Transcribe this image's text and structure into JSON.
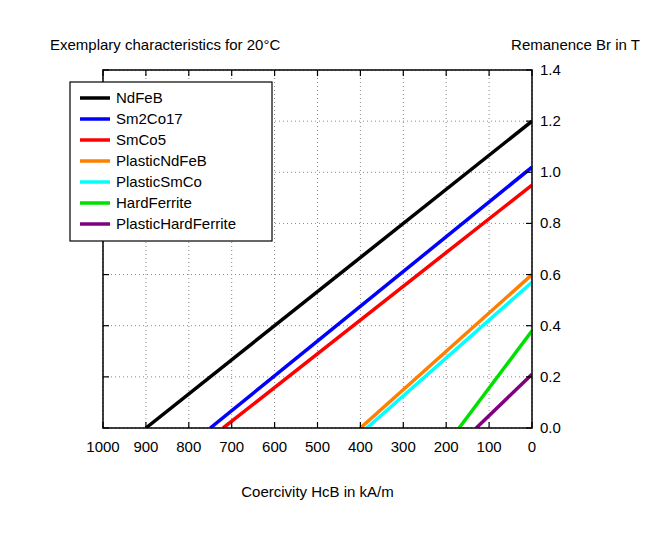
{
  "chart_data": {
    "type": "line",
    "title": "Exemplary characteristics for 20°C",
    "y_label": "Remanence Br in T",
    "x_label": "Coercivity HcB in kA/m",
    "xlim": [
      1000,
      0
    ],
    "xticks": [
      1000,
      900,
      800,
      700,
      600,
      500,
      400,
      300,
      200,
      100,
      0
    ],
    "ylim": [
      0,
      1.4
    ],
    "yticks": [
      {
        "value": 0,
        "label": "0.0"
      },
      0.2,
      0.4,
      0.6,
      0.8,
      {
        "value": 1,
        "label": "1.0"
      },
      1.2,
      1.4
    ],
    "grid": true,
    "legend": "upper left",
    "series": [
      {
        "name": "NdFeB",
        "color": "#000000",
        "x": [
          900,
          0
        ],
        "values": [
          0,
          1.2
        ]
      },
      {
        "name": "Sm2Co17",
        "color": "#0000ff",
        "x": [
          750,
          0
        ],
        "values": [
          0,
          1.02
        ]
      },
      {
        "name": "SmCo5",
        "color": "#ff0000",
        "x": [
          720,
          0
        ],
        "values": [
          0,
          0.95
        ]
      },
      {
        "name": "PlasticNdFeB",
        "color": "#ff8000",
        "x": [
          400,
          0
        ],
        "values": [
          0,
          0.6
        ]
      },
      {
        "name": "PlasticSmCo",
        "color": "#00ffff",
        "x": [
          385,
          0
        ],
        "values": [
          0,
          0.57
        ]
      },
      {
        "name": "HardFerrite",
        "color": "#00e000",
        "x": [
          170,
          0
        ],
        "values": [
          0,
          0.38
        ]
      },
      {
        "name": "PlasticHardFerrite",
        "color": "#800080",
        "x": [
          130,
          0
        ],
        "values": [
          0,
          0.21
        ]
      }
    ]
  }
}
